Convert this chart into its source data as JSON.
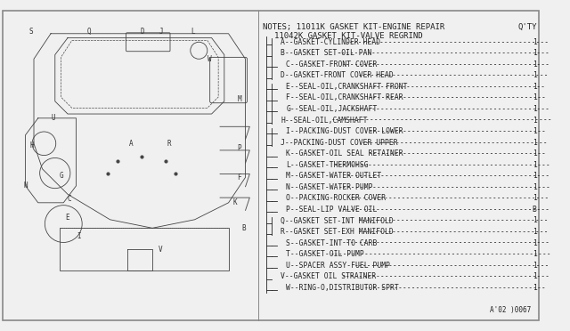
{
  "bg_color": "#f0f0f0",
  "border_color": "#888888",
  "title_note1": "NOTES; 11011K GASKET KIT-ENGINE REPAIR",
  "title_note2": "11042K GASKET KIT-VALVE REGRIND",
  "qty_label": "Q'TY",
  "footer": "A'02 )0067",
  "parts": [
    {
      "letter": "A",
      "desc": "GASKET-CYLINDER HEAD",
      "qty": "1",
      "indent": 2
    },
    {
      "letter": "B",
      "desc": "GASKET SET-OIL PAN",
      "qty": "1",
      "indent": 2
    },
    {
      "letter": "C",
      "desc": "GASKET-FRONT COVER",
      "qty": "1",
      "indent": 3
    },
    {
      "letter": "D",
      "desc": "GASKET-FRONT COVER HEAD",
      "qty": "1",
      "indent": 2
    },
    {
      "letter": "E",
      "desc": "SEAL-OIL,CRANKSHAFT FRONT",
      "qty": "1",
      "indent": 3
    },
    {
      "letter": "F",
      "desc": "SEAL-OIL,CRANKSHAFT REAR",
      "qty": "1",
      "indent": 3
    },
    {
      "letter": "G",
      "desc": "SEAL-OIL,JACKSHAFT",
      "qty": "1",
      "indent": 3
    },
    {
      "letter": "H",
      "desc": "SEAL-OIL,CAMSHAFT",
      "qty": "1",
      "indent": 2
    },
    {
      "letter": "I",
      "desc": "PACKING-DUST COVER LOWER",
      "qty": "1",
      "indent": 3
    },
    {
      "letter": "J",
      "desc": "PACKING-DUST COVER UPPER",
      "qty": "1",
      "indent": 2
    },
    {
      "letter": "K",
      "desc": "GASKET-OIL SEAL RETAINER",
      "qty": "1",
      "indent": 3
    },
    {
      "letter": "L",
      "desc": "GASKET-THERMOHSG",
      "qty": "1",
      "indent": 3
    },
    {
      "letter": "M",
      "desc": "GASKET-WATER OUTLET",
      "qty": "1",
      "indent": 3
    },
    {
      "letter": "N",
      "desc": "GASKET-WATER PUMP",
      "qty": "1",
      "indent": 3
    },
    {
      "letter": "O",
      "desc": "PACKING-ROCKER COVER",
      "qty": "1",
      "indent": 3
    },
    {
      "letter": "P",
      "desc": "SEAL-LIP VALVE OIL",
      "qty": "B",
      "indent": 3
    },
    {
      "letter": "Q",
      "desc": "GASKET SET-INT MANIFOLD",
      "qty": "1",
      "indent": 2
    },
    {
      "letter": "R",
      "desc": "GASKET SET-EXH MANIFOLD",
      "qty": "1",
      "indent": 2
    },
    {
      "letter": "S",
      "desc": "GASKET-INT TO CARB",
      "qty": "1",
      "indent": 3
    },
    {
      "letter": "T",
      "desc": "GASKET-OIL PUMP",
      "qty": "1",
      "indent": 3
    },
    {
      "letter": "U",
      "desc": "SPACER ASSY-FUEL PUMP",
      "qty": "1",
      "indent": 3
    },
    {
      "letter": "V",
      "desc": "GASKET OIL STRAINER",
      "qty": "1",
      "indent": 2
    },
    {
      "letter": "W",
      "desc": "RING-O,DISTRIBUTOR SPRT",
      "qty": "1",
      "indent": 3
    }
  ],
  "diagram_labels": [
    "S",
    "Q",
    "D",
    "J",
    "L",
    "W",
    "U",
    "H",
    "M",
    "G",
    "P",
    "N",
    "A",
    "F",
    "C",
    "E",
    "R",
    "K",
    "I",
    "B",
    "V"
  ],
  "text_color": "#222222",
  "font_family": "monospace",
  "font_size_title": 6.5,
  "font_size_parts": 5.8,
  "font_size_footer": 5.5
}
